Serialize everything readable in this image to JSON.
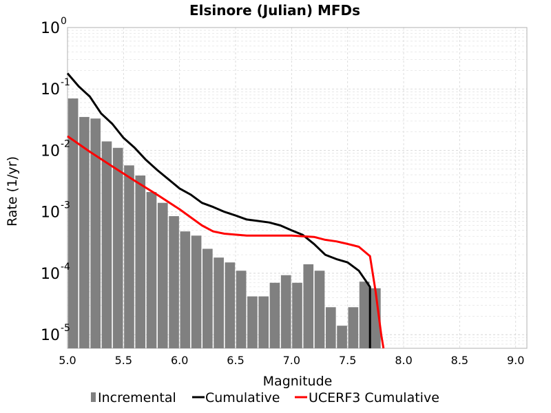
{
  "chart_data": {
    "type": "bar",
    "title": "Elsinore (Julian) MFDs",
    "xlabel": "Magnitude",
    "ylabel": "Rate (1/yr)",
    "x_range": [
      5.0,
      9.1
    ],
    "y_range": [
      6e-06,
      1.0
    ],
    "y_scale": "log",
    "grid": true,
    "legend_position": "bottom",
    "x_ticks": [
      "5.0",
      "5.5",
      "6.0",
      "6.5",
      "7.0",
      "7.5",
      "8.0",
      "8.5",
      "9.0"
    ],
    "y_ticks": [
      {
        "base": "10",
        "exp": "0",
        "value": 1
      },
      {
        "base": "10",
        "exp": "-1",
        "value": 0.1
      },
      {
        "base": "10",
        "exp": "-2",
        "value": 0.01
      },
      {
        "base": "10",
        "exp": "-3",
        "value": 0.001
      },
      {
        "base": "10",
        "exp": "-4",
        "value": 0.0001
      },
      {
        "base": "10",
        "exp": "-5",
        "value": 1e-05
      }
    ],
    "series": [
      {
        "name": "Incremental",
        "type": "bar",
        "color": "#808080",
        "bin_width": 0.1,
        "x": [
          5.05,
          5.15,
          5.25,
          5.35,
          5.45,
          5.55,
          5.65,
          5.75,
          5.85,
          5.95,
          6.05,
          6.15,
          6.25,
          6.35,
          6.45,
          6.55,
          6.65,
          6.75,
          6.85,
          6.95,
          7.05,
          7.15,
          7.25,
          7.35,
          7.45,
          7.55,
          7.65,
          7.75
        ],
        "values": [
          0.07,
          0.035,
          0.033,
          0.014,
          0.011,
          0.0057,
          0.0039,
          0.0021,
          0.0014,
          0.00085,
          0.00048,
          0.00041,
          0.00025,
          0.00018,
          0.00015,
          0.00011,
          4.2e-05,
          4.2e-05,
          7e-05,
          9.3e-05,
          7e-05,
          0.00014,
          0.00011,
          2.8e-05,
          1.4e-05,
          2.8e-05,
          7.3e-05,
          5.7e-05
        ]
      },
      {
        "name": "Cumulative",
        "type": "line",
        "color": "#000000",
        "x": [
          5.0,
          5.1,
          5.2,
          5.3,
          5.4,
          5.5,
          5.6,
          5.7,
          5.8,
          5.9,
          6.0,
          6.1,
          6.2,
          6.3,
          6.4,
          6.5,
          6.6,
          6.7,
          6.8,
          6.9,
          7.0,
          7.1,
          7.2,
          7.3,
          7.4,
          7.5,
          7.6,
          7.7,
          7.7
        ],
        "values": [
          0.18,
          0.11,
          0.075,
          0.04,
          0.027,
          0.016,
          0.011,
          0.007,
          0.0048,
          0.0034,
          0.0024,
          0.0019,
          0.0014,
          0.0012,
          0.001,
          0.00087,
          0.00075,
          0.00071,
          0.00067,
          0.0006,
          0.0005,
          0.00042,
          0.0003,
          0.0002,
          0.00017,
          0.00015,
          0.00011,
          6e-05,
          5e-06
        ]
      },
      {
        "name": "UCERF3 Cumulative",
        "type": "line",
        "color": "#ff0000",
        "x": [
          5.0,
          5.2,
          5.4,
          5.6,
          5.8,
          6.0,
          6.2,
          6.3,
          6.4,
          6.6,
          6.8,
          7.0,
          7.1,
          7.2,
          7.3,
          7.4,
          7.5,
          7.6,
          7.7,
          7.75,
          7.8,
          7.82
        ],
        "values": [
          0.017,
          0.0095,
          0.0055,
          0.0032,
          0.0019,
          0.0011,
          0.0006,
          0.00048,
          0.00044,
          0.00041,
          0.00041,
          0.00041,
          0.0004,
          0.00039,
          0.00035,
          0.00033,
          0.0003,
          0.00027,
          0.00019,
          5e-05,
          1e-05,
          5e-06
        ]
      }
    ]
  }
}
